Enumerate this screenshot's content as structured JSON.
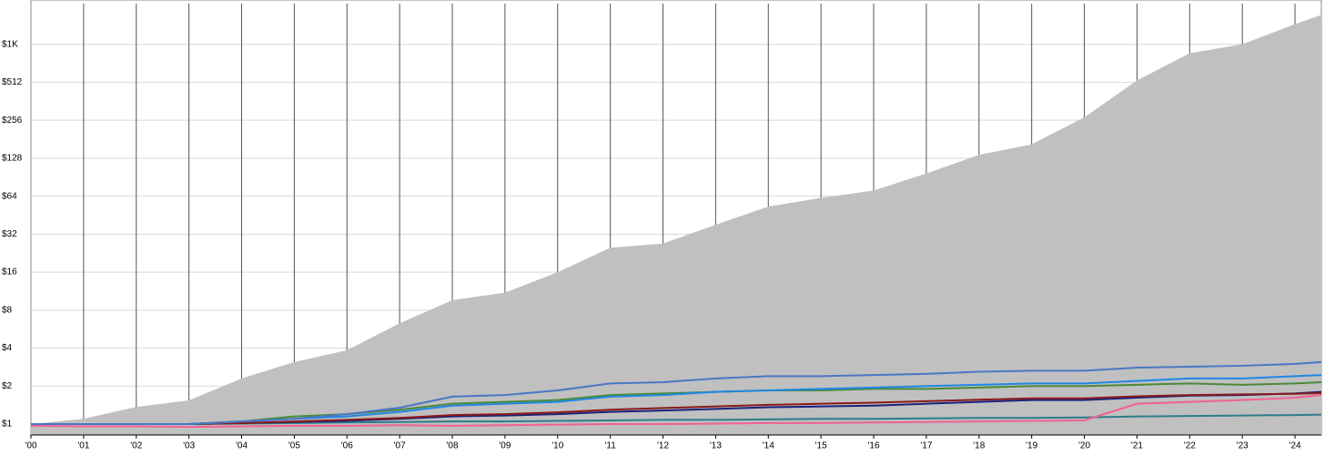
{
  "chart_data": {
    "type": "line",
    "log_scale": true,
    "grid": true,
    "x": [
      2000,
      2001,
      2002,
      2003,
      2004,
      2005,
      2006,
      2007,
      2008,
      2009,
      2010,
      2011,
      2012,
      2013,
      2014,
      2015,
      2016,
      2017,
      2018,
      2019,
      2020,
      2021,
      2022,
      2023,
      2024,
      2024.5
    ],
    "xlim": [
      2000,
      2024.5
    ],
    "xticks": [
      {
        "value": 2000,
        "label": "'00"
      },
      {
        "value": 2001,
        "label": "'01"
      },
      {
        "value": 2002,
        "label": "'02"
      },
      {
        "value": 2003,
        "label": "'03"
      },
      {
        "value": 2004,
        "label": "'04"
      },
      {
        "value": 2005,
        "label": "'05"
      },
      {
        "value": 2006,
        "label": "'06"
      },
      {
        "value": 2007,
        "label": "'07"
      },
      {
        "value": 2008,
        "label": "'08"
      },
      {
        "value": 2009,
        "label": "'09"
      },
      {
        "value": 2010,
        "label": "'10"
      },
      {
        "value": 2011,
        "label": "'11"
      },
      {
        "value": 2012,
        "label": "'12"
      },
      {
        "value": 2013,
        "label": "'13"
      },
      {
        "value": 2014,
        "label": "'14"
      },
      {
        "value": 2015,
        "label": "'15"
      },
      {
        "value": 2016,
        "label": "'16"
      },
      {
        "value": 2017,
        "label": "'17"
      },
      {
        "value": 2018,
        "label": "'18"
      },
      {
        "value": 2019,
        "label": "'19"
      },
      {
        "value": 2020,
        "label": "'20"
      },
      {
        "value": 2021,
        "label": "'21"
      },
      {
        "value": 2022,
        "label": "'22"
      },
      {
        "value": 2023,
        "label": "'23"
      },
      {
        "value": 2024,
        "label": "'24"
      }
    ],
    "ylim": [
      0.82,
      2150
    ],
    "yticks": [
      {
        "value": 1,
        "label": "$1"
      },
      {
        "value": 2,
        "label": "$2"
      },
      {
        "value": 4,
        "label": "$4"
      },
      {
        "value": 8,
        "label": "$8"
      },
      {
        "value": 16,
        "label": "$16"
      },
      {
        "value": 32,
        "label": "$32"
      },
      {
        "value": 64,
        "label": "$64"
      },
      {
        "value": 128,
        "label": "$128"
      },
      {
        "value": 256,
        "label": "$256"
      },
      {
        "value": 512,
        "label": "$512"
      },
      {
        "value": 1024,
        "label": "$1K"
      }
    ],
    "series": [
      {
        "type": "area",
        "color": "#c0c0c0",
        "values": [
          1,
          1.1,
          1.37,
          1.54,
          2.3,
          3.1,
          3.85,
          6.3,
          9.6,
          11,
          16,
          25,
          27,
          38,
          53,
          62,
          71,
          97,
          136,
          165,
          270,
          530,
          870,
          1024,
          1480,
          1750
        ]
      },
      {
        "color": "#2e7d8a",
        "values": [
          1,
          1,
          1,
          1,
          1.01,
          1.02,
          1.03,
          1.04,
          1.05,
          1.05,
          1.06,
          1.07,
          1.08,
          1.08,
          1.09,
          1.1,
          1.1,
          1.11,
          1.12,
          1.12,
          1.13,
          1.15,
          1.16,
          1.17,
          1.18,
          1.19
        ]
      },
      {
        "color": "#f06292",
        "values": [
          0.97,
          0.96,
          0.96,
          0.95,
          0.96,
          0.97,
          0.97,
          0.98,
          0.97,
          0.98,
          0.99,
          1,
          1,
          1.01,
          1.02,
          1.02,
          1.03,
          1.04,
          1.05,
          1.06,
          1.07,
          1.45,
          1.5,
          1.55,
          1.62,
          1.7
        ]
      },
      {
        "color": "#1a237e",
        "values": [
          1,
          1,
          1,
          1,
          1.02,
          1.04,
          1.06,
          1.1,
          1.15,
          1.17,
          1.2,
          1.25,
          1.28,
          1.32,
          1.36,
          1.38,
          1.4,
          1.45,
          1.5,
          1.55,
          1.55,
          1.62,
          1.68,
          1.7,
          1.75,
          1.8
        ]
      },
      {
        "color": "#8b1a1a",
        "values": [
          1,
          1,
          1,
          1,
          1.02,
          1.05,
          1.08,
          1.12,
          1.18,
          1.2,
          1.24,
          1.3,
          1.34,
          1.38,
          1.42,
          1.45,
          1.48,
          1.52,
          1.56,
          1.6,
          1.6,
          1.66,
          1.7,
          1.72,
          1.74,
          1.76
        ]
      },
      {
        "color": "#4a8a3a",
        "values": [
          1,
          1,
          1,
          1,
          1.05,
          1.15,
          1.2,
          1.3,
          1.45,
          1.5,
          1.55,
          1.7,
          1.75,
          1.8,
          1.85,
          1.85,
          1.9,
          1.9,
          1.95,
          2,
          2,
          2.05,
          2.1,
          2.05,
          2.1,
          2.15
        ]
      },
      {
        "color": "#1e88e5",
        "values": [
          1,
          1,
          1,
          1,
          1.05,
          1.1,
          1.15,
          1.25,
          1.4,
          1.45,
          1.5,
          1.65,
          1.7,
          1.8,
          1.85,
          1.9,
          1.95,
          2,
          2.05,
          2.1,
          2.1,
          2.2,
          2.3,
          2.3,
          2.4,
          2.45
        ]
      },
      {
        "color": "#4a77c4",
        "values": [
          1,
          1,
          1,
          1,
          1.05,
          1.1,
          1.2,
          1.35,
          1.65,
          1.7,
          1.85,
          2.1,
          2.15,
          2.3,
          2.4,
          2.4,
          2.45,
          2.5,
          2.6,
          2.65,
          2.65,
          2.8,
          2.85,
          2.9,
          3,
          3.1
        ]
      }
    ]
  }
}
